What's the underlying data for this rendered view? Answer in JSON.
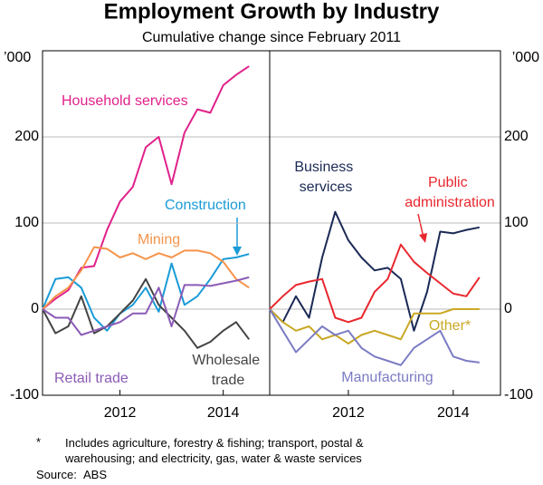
{
  "title": "Employment Growth by Industry",
  "subtitle": "Cumulative change since February 2011",
  "note_marker": "*",
  "note": "Includes agriculture, forestry & fishing; transport, postal & warehousing; and electricity, gas, water & waste services",
  "source_label": "Source:",
  "source": "ABS",
  "chart_data": [
    {
      "type": "line",
      "y_unit": "’000",
      "x": [
        2011,
        2011.25,
        2011.5,
        2011.75,
        2012,
        2012.25,
        2012.5,
        2012.75,
        2013,
        2013.25,
        2013.5,
        2013.75,
        2014,
        2014.25,
        2014.5,
        2014.75,
        2015
      ],
      "xlim": [
        2011,
        2015.4
      ],
      "xticks": [
        {
          "value": 2012.5,
          "label": "2012"
        },
        {
          "value": 2014.5,
          "label": "2014"
        }
      ],
      "ylim": [
        -100,
        300
      ],
      "yticks": [
        -100,
        0,
        100,
        200
      ],
      "grid": true,
      "series": [
        {
          "name": "Household services",
          "color": "#e0218a",
          "values": [
            0,
            12,
            22,
            48,
            50,
            92,
            125,
            142,
            188,
            200,
            145,
            205,
            232,
            228,
            260,
            272,
            282
          ]
        },
        {
          "name": "Construction",
          "color": "#1a9bd7",
          "values": [
            0,
            35,
            37,
            25,
            -10,
            -25,
            -5,
            5,
            25,
            -3,
            53,
            5,
            15,
            35,
            58,
            60,
            64
          ]
        },
        {
          "name": "Mining",
          "color": "#f5944b",
          "values": [
            0,
            15,
            25,
            45,
            72,
            70,
            60,
            65,
            58,
            65,
            60,
            68,
            68,
            65,
            55,
            35,
            25
          ]
        },
        {
          "name": "Wholesale trade",
          "color": "#444444",
          "values": [
            0,
            -28,
            -20,
            15,
            -28,
            -20,
            -5,
            10,
            35,
            5,
            -10,
            -25,
            -45,
            -38,
            -25,
            -15,
            -35
          ]
        },
        {
          "name": "Retail trade",
          "color": "#8b5bb5",
          "values": [
            0,
            -10,
            -10,
            -30,
            -25,
            -20,
            -15,
            -5,
            -5,
            25,
            -20,
            28,
            28,
            27,
            30,
            33,
            37
          ]
        }
      ]
    },
    {
      "type": "line",
      "y_unit": "’000",
      "x": [
        2011,
        2011.25,
        2011.5,
        2011.75,
        2012,
        2012.25,
        2012.5,
        2012.75,
        2013,
        2013.25,
        2013.5,
        2013.75,
        2014,
        2014.25,
        2014.5,
        2014.75,
        2015
      ],
      "xlim": [
        2011,
        2015.4
      ],
      "xticks": [
        {
          "value": 2012.5,
          "label": "2012"
        },
        {
          "value": 2014.5,
          "label": "2014"
        }
      ],
      "ylim": [
        -100,
        300
      ],
      "yticks": [
        -100,
        0,
        100,
        200
      ],
      "grid": true,
      "series": [
        {
          "name": "Business services",
          "color": "#1b2a55",
          "values": [
            0,
            -15,
            15,
            -10,
            60,
            113,
            80,
            60,
            45,
            48,
            35,
            -25,
            20,
            90,
            88,
            92,
            95
          ]
        },
        {
          "name": "Public administration",
          "color": "#e8282e",
          "values": [
            0,
            15,
            28,
            32,
            35,
            -10,
            -15,
            -10,
            20,
            35,
            75,
            55,
            42,
            30,
            18,
            15,
            37
          ]
        },
        {
          "name": "Other*",
          "color": "#c9a825",
          "values": [
            0,
            -15,
            -25,
            -20,
            -35,
            -30,
            -40,
            -30,
            -25,
            -30,
            -35,
            -5,
            -5,
            -5,
            0,
            0,
            0
          ]
        },
        {
          "name": "Manufacturing",
          "color": "#7b7bc4",
          "values": [
            0,
            -25,
            -50,
            -35,
            -20,
            -30,
            -25,
            -45,
            -55,
            -60,
            -65,
            -45,
            -35,
            -25,
            -55,
            -60,
            -62
          ]
        }
      ]
    }
  ]
}
